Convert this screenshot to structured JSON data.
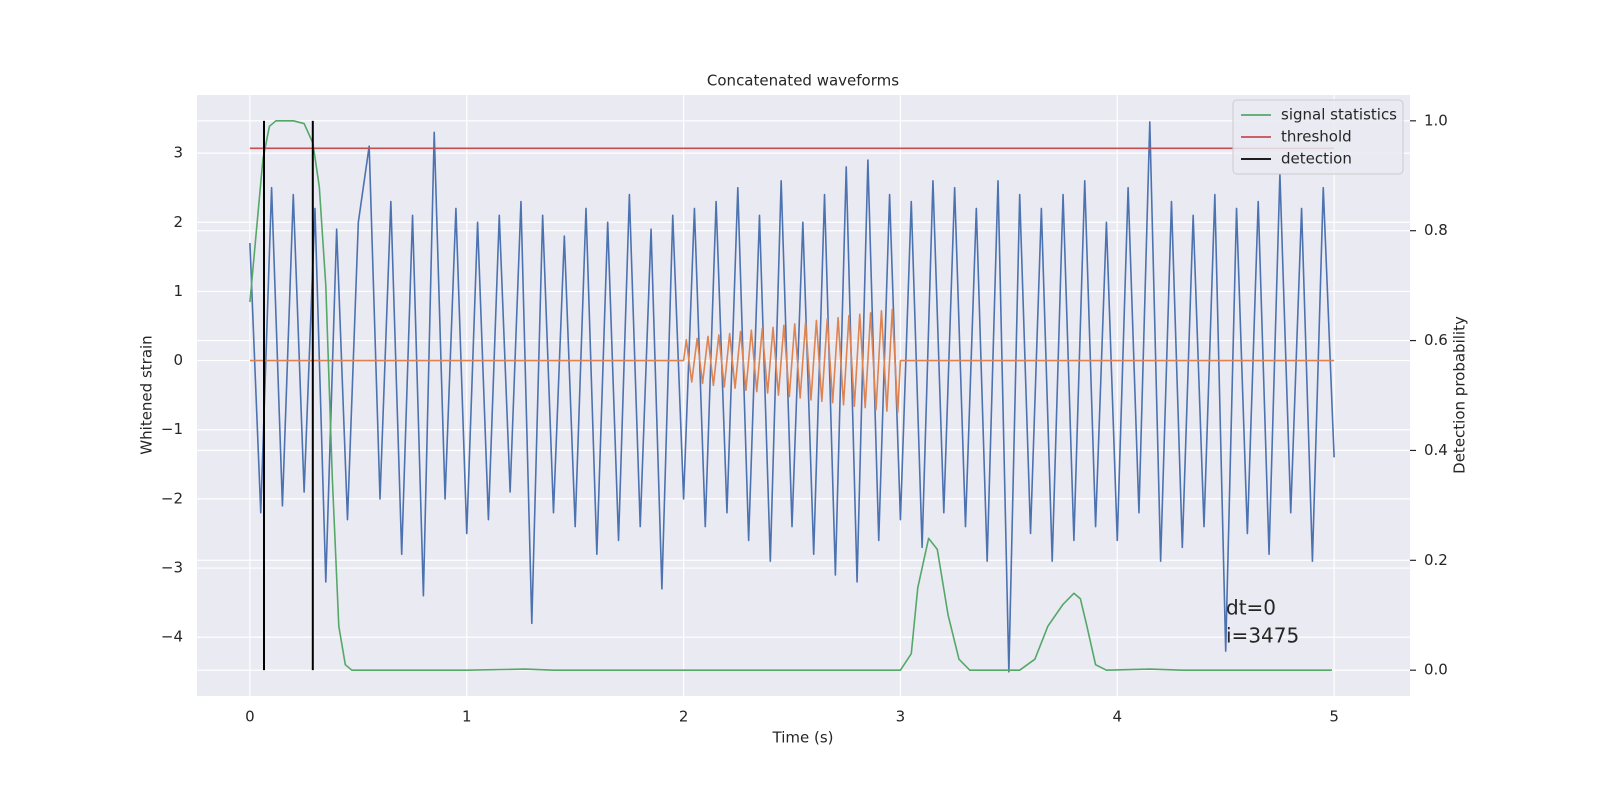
{
  "chart_data": {
    "type": "line",
    "title": "Concatenated waveforms",
    "x_label": "Time (s)",
    "y_label": "Whitened strain",
    "y2_label": "Detection probability",
    "xlim": [
      -0.244,
      5.35
    ],
    "ylim": [
      -4.85,
      3.84
    ],
    "y2lim": [
      -0.047,
      1.047
    ],
    "xticks": [
      0,
      1,
      2,
      3,
      4,
      5
    ],
    "yticks": [
      {
        "value": -4,
        "label": "−4"
      },
      {
        "value": -3,
        "label": "−3"
      },
      {
        "value": -2,
        "label": "−2"
      },
      {
        "value": -1,
        "label": "−1"
      },
      0,
      1,
      2,
      3
    ],
    "y2ticks": [
      {
        "value": 0,
        "label": "0.0"
      },
      0.2,
      0.4,
      0.6,
      0.8,
      {
        "value": 1,
        "label": "1.0"
      }
    ],
    "grid": true,
    "legend": "upper right",
    "annotations": [
      "dt=0",
      "i=3475"
    ],
    "series": [
      {
        "color": "#4c72b0",
        "x": [
          0,
          0.05,
          0.1,
          0.15,
          0.2,
          0.25,
          0.3,
          0.35,
          0.4,
          0.45,
          0.5,
          0.55,
          0.6,
          0.65,
          0.7,
          0.75,
          0.8,
          0.85,
          0.9,
          0.95,
          1,
          1.05,
          1.1,
          1.15,
          1.2,
          1.25,
          1.3,
          1.35,
          1.4,
          1.45,
          1.5,
          1.55,
          1.6,
          1.65,
          1.7,
          1.75,
          1.8,
          1.85,
          1.9,
          1.95,
          2,
          2.05,
          2.1,
          2.15,
          2.2,
          2.25,
          2.3,
          2.35,
          2.4,
          2.45,
          2.5,
          2.55,
          2.6,
          2.65,
          2.7,
          2.75,
          2.8,
          2.85,
          2.9,
          2.95,
          3,
          3.05,
          3.1,
          3.15,
          3.2,
          3.25,
          3.3,
          3.35,
          3.4,
          3.45,
          3.5,
          3.55,
          3.6,
          3.65,
          3.7,
          3.75,
          3.8,
          3.85,
          3.9,
          3.95,
          4,
          4.05,
          4.1,
          4.15,
          4.2,
          4.25,
          4.3,
          4.35,
          4.4,
          4.45,
          4.5,
          4.55,
          4.6,
          4.65,
          4.7,
          4.75,
          4.8,
          4.85,
          4.9,
          4.95,
          5
        ],
        "values": [
          1.7,
          -2.2,
          2.5,
          -2.1,
          2.4,
          -1.9,
          2.2,
          -3.2,
          1.9,
          -2.3,
          2.0,
          3.1,
          -2.0,
          2.3,
          -2.8,
          2.1,
          -3.4,
          3.3,
          -2.0,
          2.2,
          -2.5,
          2.0,
          -2.3,
          2.1,
          -1.9,
          2.3,
          -3.8,
          2.1,
          -2.2,
          1.8,
          -2.4,
          2.2,
          -2.8,
          2.0,
          -2.6,
          2.4,
          -2.4,
          1.9,
          -3.3,
          2.1,
          -2.0,
          2.2,
          -2.4,
          2.3,
          -2.2,
          2.5,
          -2.6,
          2.1,
          -2.9,
          2.6,
          -2.4,
          2.0,
          -2.8,
          2.4,
          -3.1,
          2.8,
          -3.2,
          2.9,
          -2.6,
          2.4,
          -2.3,
          2.3,
          -2.7,
          2.6,
          -2.2,
          2.5,
          -2.4,
          2.2,
          -2.9,
          2.6,
          -4.5,
          2.4,
          -2.5,
          2.2,
          -2.9,
          2.4,
          -2.6,
          2.6,
          -2.4,
          2.0,
          -2.6,
          2.5,
          -2.2,
          3.45,
          -2.9,
          2.3,
          -2.7,
          2.1,
          -2.4,
          2.4,
          -4.2,
          2.2,
          -2.5,
          2.3,
          -2.8,
          2.7,
          -2.2,
          2.2,
          -2.9,
          2.5,
          -1.4
        ]
      },
      {
        "color": "#dd8452",
        "x": [
          0,
          2.0,
          2.0125,
          2.0375,
          2.0625,
          2.0875,
          2.1125,
          2.1375,
          2.1625,
          2.1875,
          2.2125,
          2.2375,
          2.2625,
          2.2875,
          2.3125,
          2.3375,
          2.3625,
          2.3875,
          2.4125,
          2.4375,
          2.4625,
          2.4875,
          2.5125,
          2.5375,
          2.5625,
          2.5875,
          2.6125,
          2.6375,
          2.6625,
          2.6875,
          2.7125,
          2.7375,
          2.7625,
          2.7875,
          2.8125,
          2.8375,
          2.8625,
          2.8875,
          2.9125,
          2.9375,
          2.9625,
          2.9875,
          3.0,
          5
        ],
        "values": [
          0,
          0,
          0.3,
          -0.31,
          0.32,
          -0.33,
          0.35,
          -0.36,
          0.37,
          -0.38,
          0.39,
          -0.4,
          0.42,
          -0.43,
          0.44,
          -0.45,
          0.46,
          -0.47,
          0.48,
          -0.5,
          0.51,
          -0.52,
          0.53,
          -0.54,
          0.55,
          -0.57,
          0.58,
          -0.59,
          0.6,
          -0.61,
          0.62,
          -0.64,
          0.65,
          -0.66,
          0.67,
          -0.68,
          0.69,
          -0.71,
          0.72,
          -0.73,
          0.74,
          -0.75,
          0,
          0
        ]
      },
      {
        "name": "signal statistics",
        "color": "#55a868",
        "axis": "y2",
        "x": [
          0,
          0.03,
          0.06,
          0.09,
          0.12,
          0.2,
          0.25,
          0.29,
          0.32,
          0.35,
          0.38,
          0.41,
          0.44,
          0.47,
          1.0,
          1.27,
          1.4,
          3.0,
          3.05,
          3.08,
          3.13,
          3.17,
          3.22,
          3.27,
          3.32,
          3.55,
          3.62,
          3.68,
          3.75,
          3.8,
          3.83,
          3.86,
          3.9,
          3.95,
          4.15,
          4.3,
          4.99
        ],
        "values": [
          0.67,
          0.8,
          0.93,
          0.99,
          1.0,
          1.0,
          0.995,
          0.96,
          0.88,
          0.7,
          0.35,
          0.08,
          0.01,
          0,
          0,
          0.002,
          0,
          0,
          0.03,
          0.15,
          0.24,
          0.22,
          0.1,
          0.02,
          0,
          0,
          0.02,
          0.08,
          0.12,
          0.14,
          0.13,
          0.08,
          0.01,
          0,
          0.002,
          0,
          0
        ]
      },
      {
        "name": "threshold",
        "color": "#c44e52",
        "axis": "y2",
        "x": [
          0,
          5
        ],
        "values": [
          0.95,
          0.95
        ]
      },
      {
        "name": "detection",
        "color": "#000000",
        "axis": "y2",
        "x": [
          0.065,
          0.065,
          null,
          0.29,
          0.29
        ],
        "values": [
          0,
          1,
          null,
          0,
          1
        ]
      }
    ]
  }
}
